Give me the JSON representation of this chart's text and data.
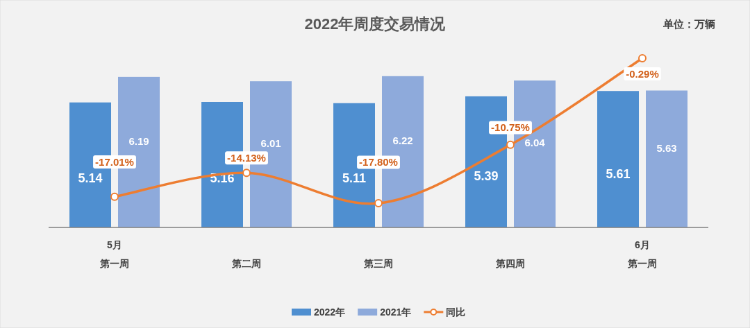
{
  "chart_data": {
    "type": "bar",
    "title": "2022年周度交易情况",
    "annotations": [
      "单位：万辆"
    ],
    "categories": [
      "5月第一周",
      "第二周",
      "第三周",
      "第四周",
      "6月第一周"
    ],
    "series": [
      {
        "name": "2022年",
        "color": "#4f8fd0",
        "values": [
          5.14,
          5.16,
          5.11,
          5.39,
          5.61
        ]
      },
      {
        "name": "2021年",
        "color": "#8eaadb",
        "values": [
          6.19,
          6.01,
          6.22,
          6.04,
          5.63
        ]
      },
      {
        "name": "同比",
        "type": "line",
        "axis": "y2",
        "color": "#ed7d31",
        "values": [
          -17.01,
          -14.13,
          -17.8,
          -10.75,
          -0.29
        ],
        "value_labels": [
          "-17.01%",
          "-14.13%",
          "-17.80%",
          "-10.75%",
          "-0.29%"
        ]
      }
    ],
    "data_labels": true,
    "marker": "circle",
    "legend": "bottom"
  }
}
